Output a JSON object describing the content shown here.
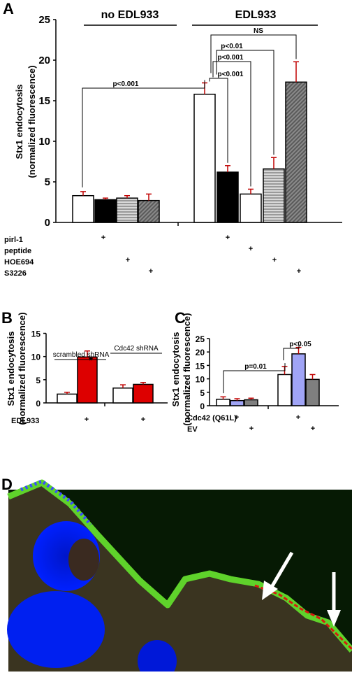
{
  "chart_data": [
    {
      "panel": "A",
      "type": "bar",
      "ylabel": "Stx1 endocytosis",
      "ylabel2": "(normalized fluorescence)",
      "ylim": [
        0,
        25
      ],
      "yticks": [
        "0",
        "5",
        "10",
        "15",
        "20",
        "25"
      ],
      "groups": [
        {
          "label": "no EDL933",
          "values": [
            3.3,
            2.8,
            3.0,
            2.7
          ],
          "errors": [
            0.5,
            0.2,
            0.3,
            0.8
          ]
        },
        {
          "label": "EDL933",
          "values": [
            15.8,
            6.2,
            3.5,
            6.6,
            17.3
          ],
          "errors": [
            1.4,
            0.8,
            0.6,
            1.4,
            2.5
          ]
        }
      ],
      "conditions": [
        "pirl-1",
        "peptide",
        "HOE694",
        "S3226"
      ],
      "plus": "+",
      "comparisons": [
        "p<0.001",
        "p<0.001",
        "p<0.001",
        "p<0.01",
        "NS"
      ]
    },
    {
      "panel": "B",
      "type": "bar",
      "ylabel": "Stx1 endocytosis",
      "ylabel2": "(normalized fluorescence)",
      "ylim": [
        0,
        15
      ],
      "yticks": [
        "0",
        "5",
        "10",
        "15"
      ],
      "groups": [
        {
          "label": "scrambled shRNA",
          "values": [
            1.9,
            9.9
          ],
          "errors": [
            0.4,
            1.3
          ]
        },
        {
          "label": "Cdc42 shRNA",
          "values": [
            3.2,
            4.0
          ],
          "errors": [
            0.7,
            0.4
          ]
        }
      ],
      "condition": "EDL933",
      "plus": "+",
      "annotation": "*"
    },
    {
      "panel": "C",
      "type": "bar",
      "ylabel": "Stx1 endocytosis",
      "ylabel2": "(normalized fluorescence)",
      "ylim": [
        0,
        25
      ],
      "yticks": [
        "0",
        "5",
        "10",
        "15",
        "20",
        "25"
      ],
      "groups": [
        {
          "values": [
            2.4,
            1.9,
            2.2
          ],
          "errors": [
            0.9,
            0.7,
            0.6
          ]
        },
        {
          "values": [
            11.6,
            19.3,
            9.8
          ],
          "errors": [
            3.0,
            2.4,
            1.8
          ]
        }
      ],
      "conditions": [
        "Cdc42 (Q61L)",
        "EV"
      ],
      "plus": "+",
      "comparisons": [
        "p=0.01",
        "p<0.05"
      ]
    }
  ],
  "panel_d": {
    "label": "D"
  },
  "colors": {
    "white": "#ffffff",
    "black": "#000000",
    "hatch_gray": "#b8b8b8",
    "dark_gray": "#6f6f6f",
    "red": "#dd0000",
    "lavender": "#a0a4f6",
    "gray_c": "#7f7f7f"
  }
}
